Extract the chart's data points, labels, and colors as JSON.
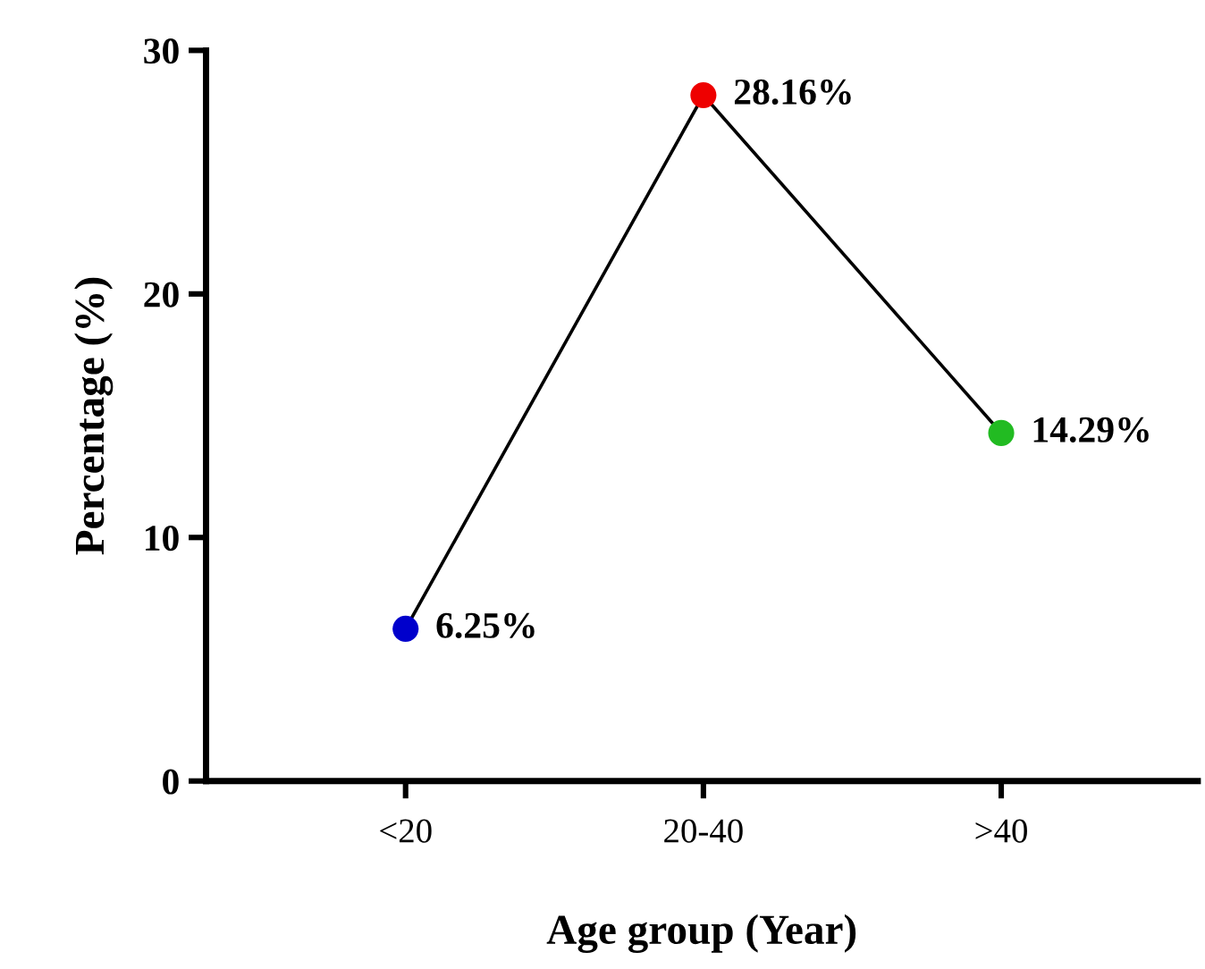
{
  "chart_data": {
    "type": "line",
    "xlabel": "Age group (Year)",
    "ylabel": "Percentage (%)",
    "categories": [
      "<20",
      "20-40",
      ">40"
    ],
    "series": [
      {
        "color": "#000000",
        "colors": [
          "#0000cc",
          "#ee0000",
          "#22bb22"
        ],
        "values": [
          6.25,
          28.16,
          14.29
        ],
        "value_labels": [
          "6.25%",
          "28.16%",
          "14.29%"
        ]
      }
    ],
    "ylim": [
      0,
      30
    ],
    "yticks": [
      0,
      10,
      20,
      30
    ],
    "grid": false,
    "legend": false,
    "marker": "circle",
    "line_style": "solid"
  }
}
